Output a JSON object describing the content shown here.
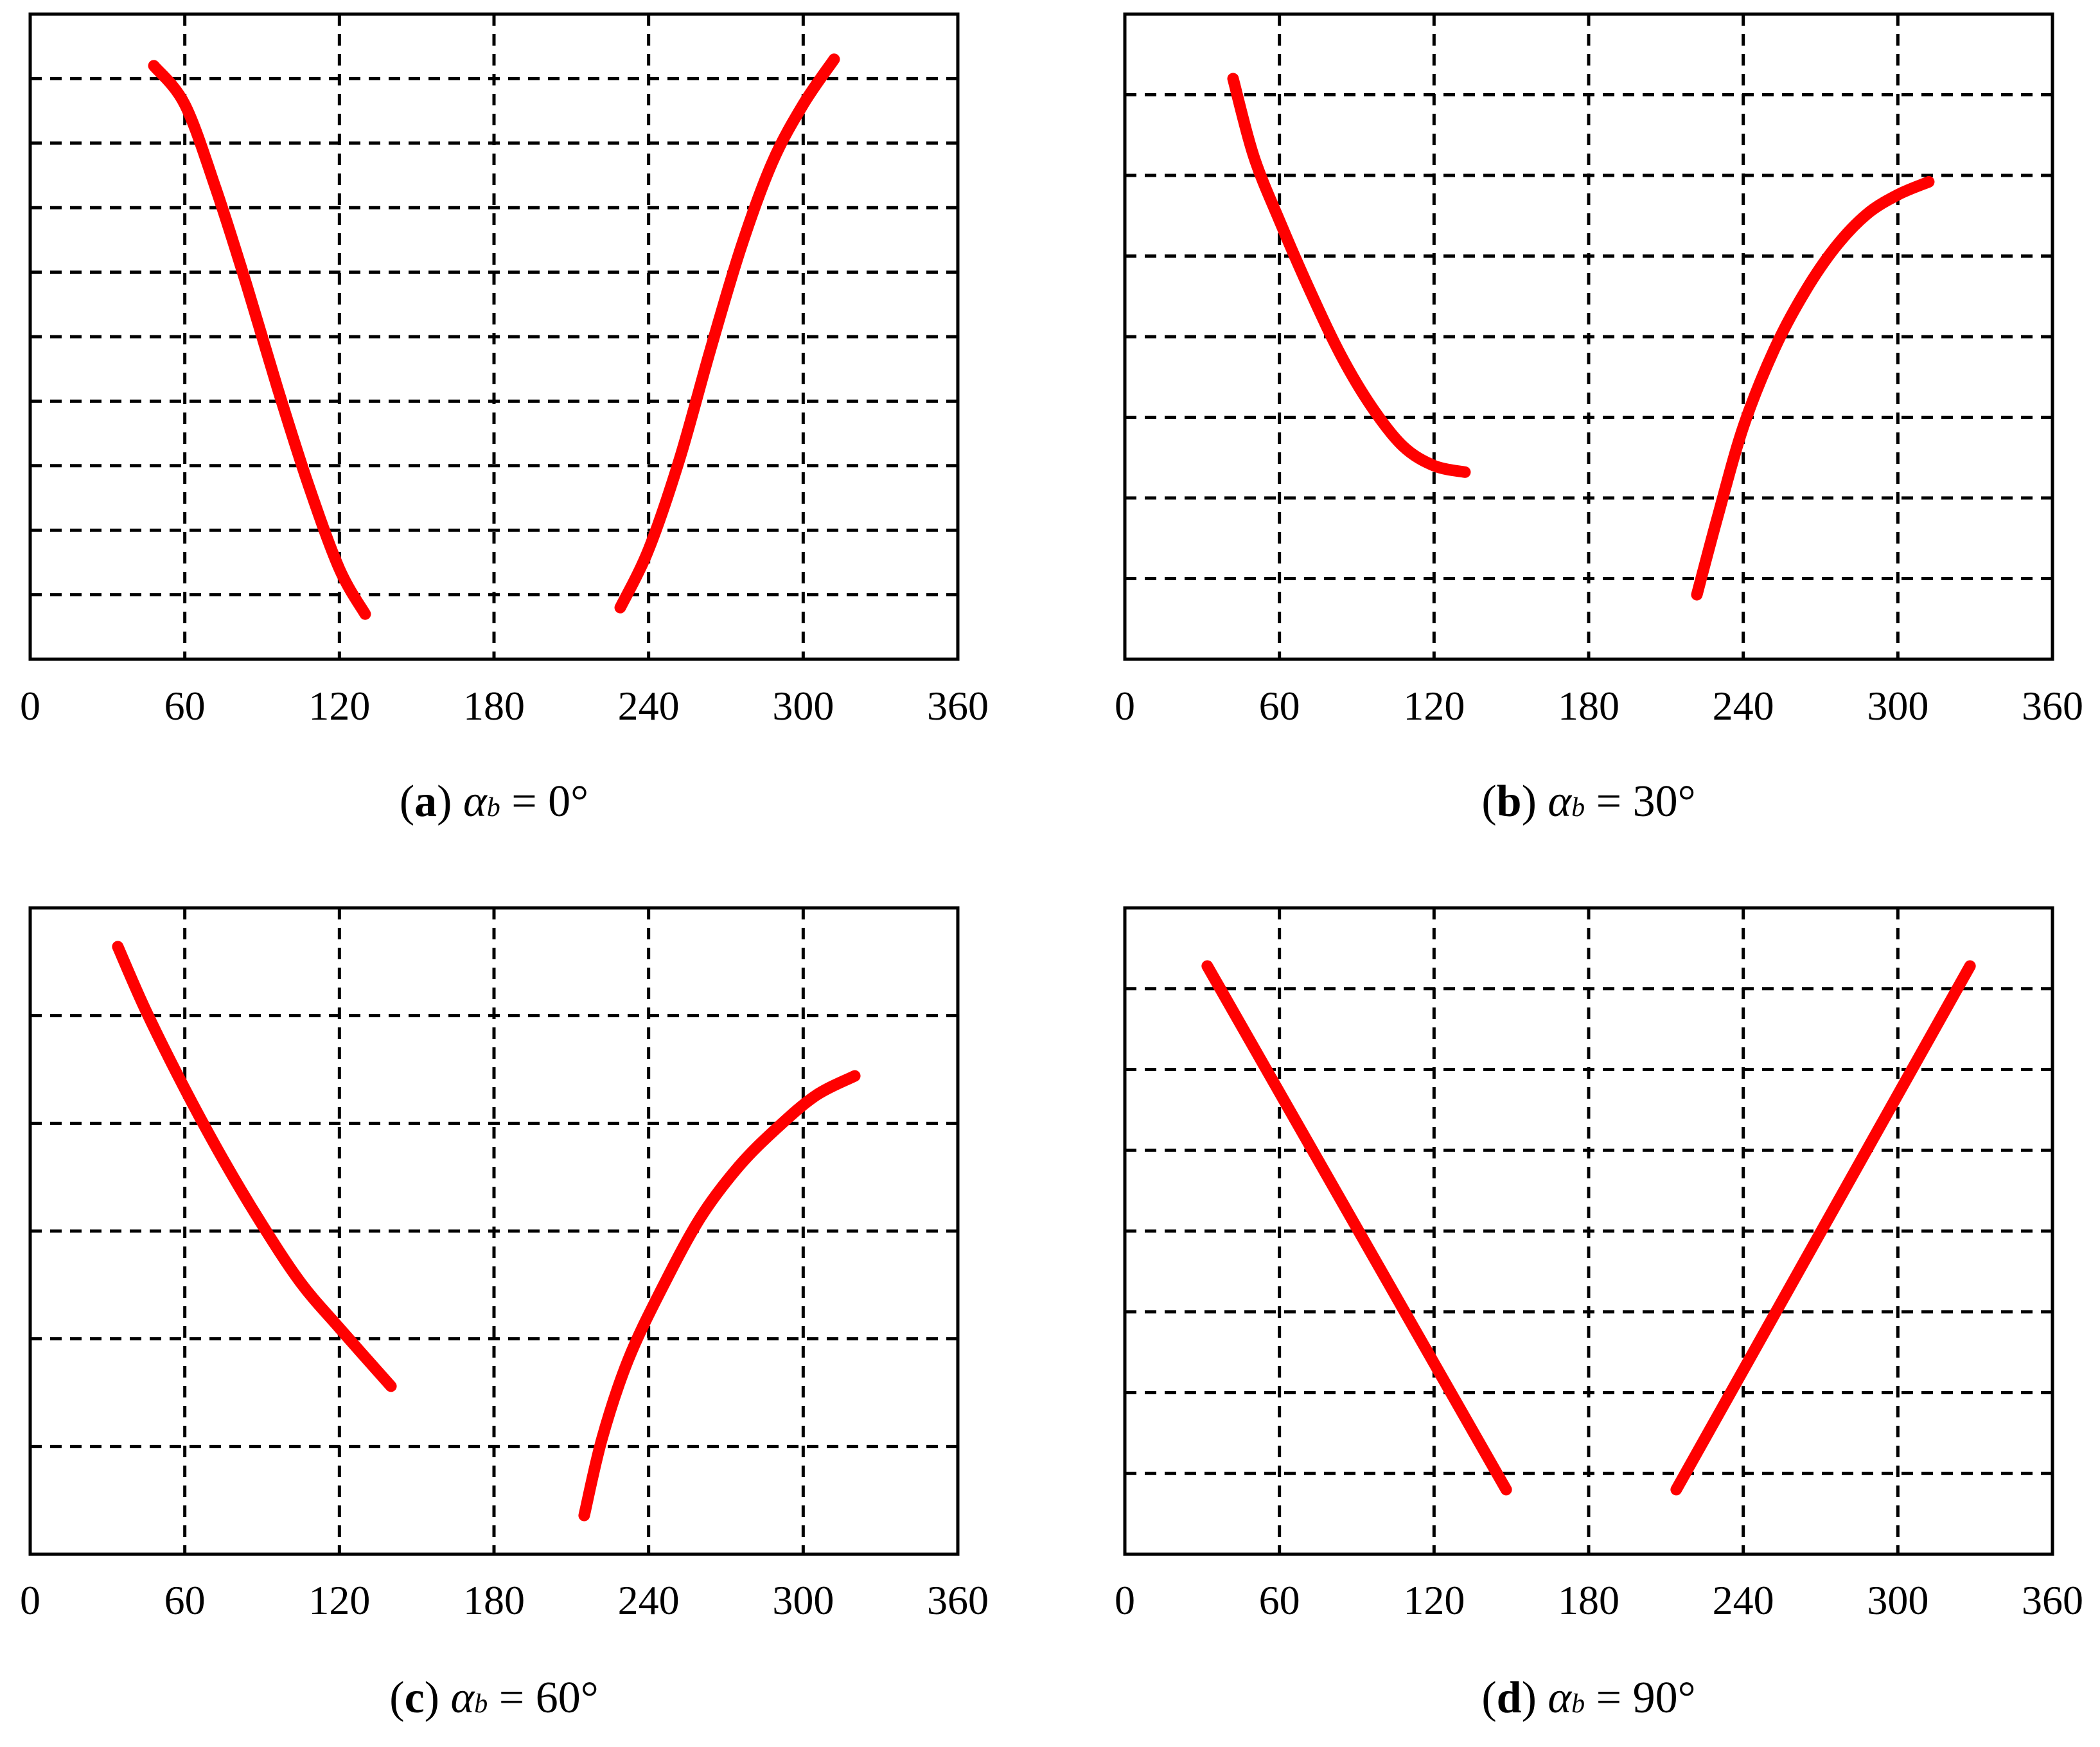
{
  "chart_data": [
    {
      "type": "line",
      "panel": "a",
      "caption": {
        "tag": "a",
        "symbol": "α",
        "subscript": "b",
        "rest": " = 0°"
      },
      "xlim": [
        0,
        360
      ],
      "x_ticks": [
        "0",
        "60",
        "120",
        "180",
        "240",
        "300",
        "360"
      ],
      "y_gridlines": 9,
      "grid": true,
      "line_color": "#ff0000",
      "series": [
        {
          "x": [
            48,
            60,
            72,
            84,
            96,
            108,
            120,
            130
          ],
          "y": [
            0.92,
            0.86,
            0.73,
            0.58,
            0.42,
            0.27,
            0.14,
            0.07
          ]
        },
        {
          "x": [
            229,
            240,
            252,
            264,
            276,
            288,
            300,
            312
          ],
          "y": [
            0.08,
            0.17,
            0.31,
            0.48,
            0.64,
            0.77,
            0.86,
            0.93
          ]
        }
      ]
    },
    {
      "type": "line",
      "panel": "b",
      "caption": {
        "tag": "b",
        "symbol": "α",
        "subscript": "b",
        "rest": " = 30°"
      },
      "xlim": [
        0,
        360
      ],
      "x_ticks": [
        "0",
        "60",
        "120",
        "180",
        "240",
        "300",
        "360"
      ],
      "y_gridlines": 7,
      "grid": true,
      "line_color": "#ff0000",
      "series": [
        {
          "x": [
            42,
            50,
            60,
            72,
            84,
            96,
            108,
            120,
            132
          ],
          "y": [
            0.9,
            0.78,
            0.68,
            0.57,
            0.47,
            0.39,
            0.33,
            0.3,
            0.29
          ]
        },
        {
          "x": [
            222,
            230,
            240,
            252,
            264,
            276,
            288,
            300,
            312
          ],
          "y": [
            0.1,
            0.22,
            0.36,
            0.48,
            0.57,
            0.64,
            0.69,
            0.72,
            0.74
          ]
        }
      ]
    },
    {
      "type": "line",
      "panel": "c",
      "caption": {
        "tag": "c",
        "symbol": "α",
        "subscript": "b",
        "rest": " = 60°"
      },
      "xlim": [
        0,
        360
      ],
      "x_ticks": [
        "0",
        "60",
        "120",
        "180",
        "240",
        "300",
        "360"
      ],
      "y_gridlines": 5,
      "grid": true,
      "line_color": "#ff0000",
      "series": [
        {
          "x": [
            34,
            45,
            60,
            75,
            90,
            105,
            120,
            140
          ],
          "y": [
            0.94,
            0.84,
            0.72,
            0.61,
            0.51,
            0.42,
            0.35,
            0.26
          ]
        },
        {
          "x": [
            215,
            222,
            232,
            245,
            260,
            275,
            290,
            305,
            320
          ],
          "y": [
            0.06,
            0.18,
            0.3,
            0.41,
            0.52,
            0.6,
            0.66,
            0.71,
            0.74
          ]
        }
      ]
    },
    {
      "type": "line",
      "panel": "d",
      "caption": {
        "tag": "d",
        "symbol": "α",
        "subscript": "b",
        "rest": " = 90°"
      },
      "xlim": [
        0,
        360
      ],
      "x_ticks": [
        "0",
        "60",
        "120",
        "180",
        "240",
        "300",
        "360"
      ],
      "y_gridlines": 7,
      "grid": true,
      "line_color": "#ff0000",
      "series": [
        {
          "x": [
            32,
            148
          ],
          "y": [
            0.91,
            0.1
          ]
        },
        {
          "x": [
            214,
            328
          ],
          "y": [
            0.1,
            0.91
          ]
        }
      ]
    }
  ]
}
